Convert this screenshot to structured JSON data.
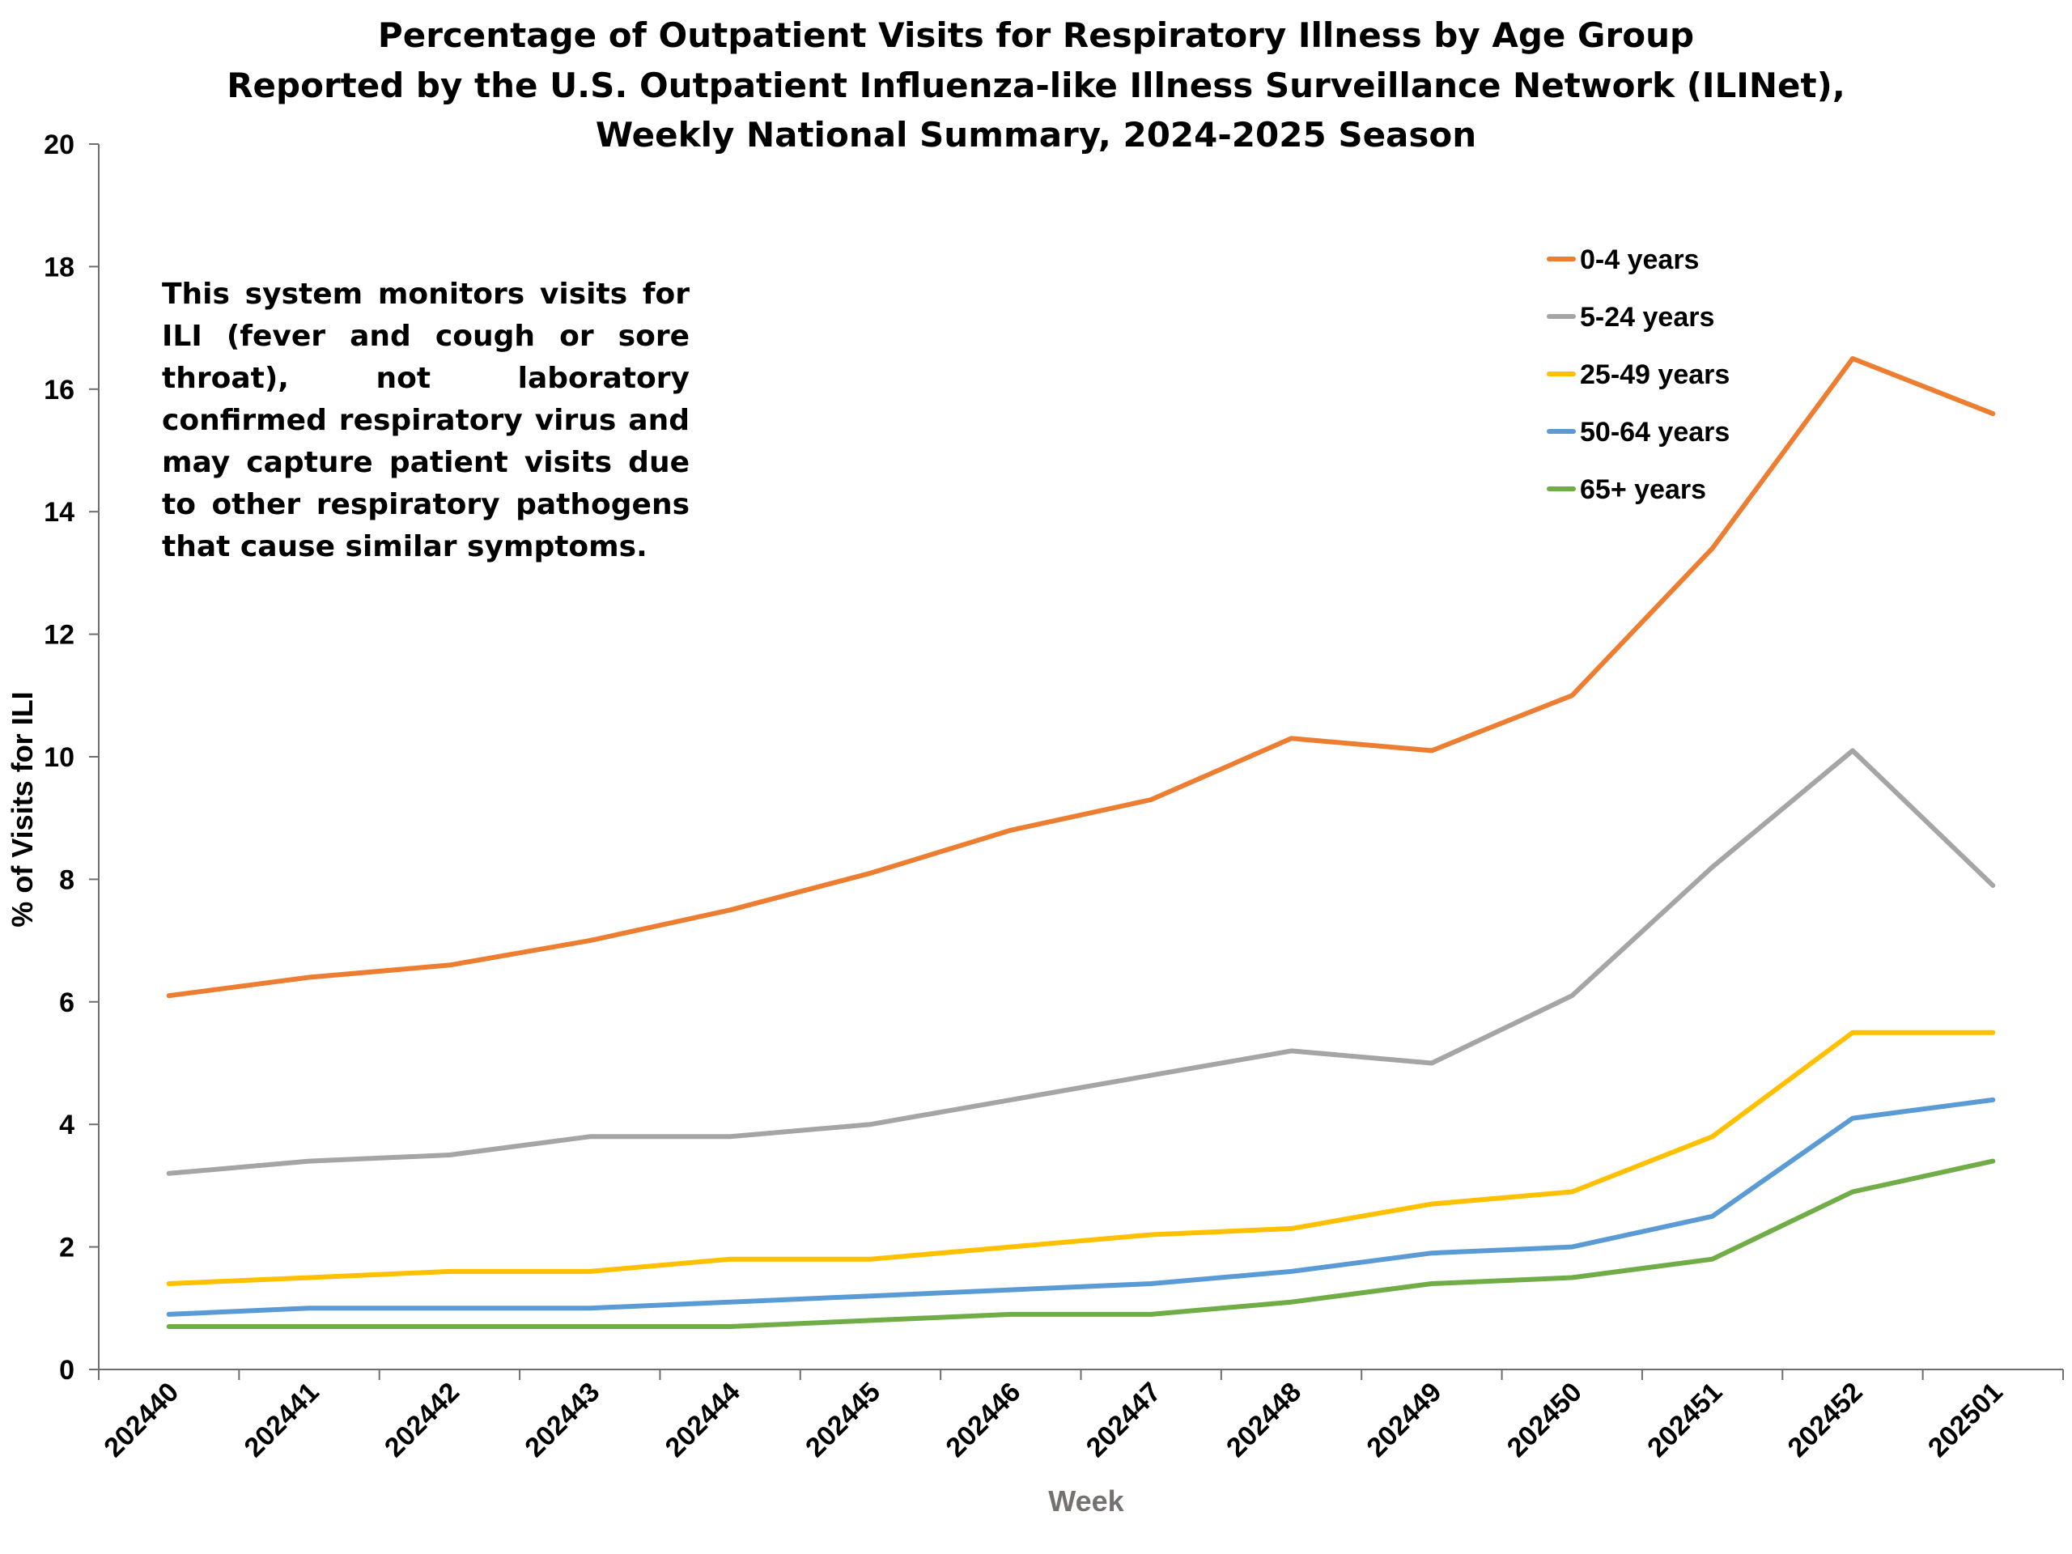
{
  "chart_data": {
    "type": "line",
    "title": [
      "Percentage of Outpatient Visits for Respiratory Illness by Age Group",
      "Reported by the U.S. Outpatient Influenza-like Illness Surveillance Network (ILINet),",
      "Weekly National Summary, 2024-2025 Season"
    ],
    "xlabel": "Week",
    "ylabel": "% of Visits for ILI",
    "ylim": [
      0,
      20
    ],
    "yticks": [
      "0",
      "2",
      "4",
      "6",
      "8",
      "10",
      "12",
      "14",
      "16",
      "18",
      "20"
    ],
    "categories": [
      "202440",
      "202441",
      "202442",
      "202443",
      "202444",
      "202445",
      "202446",
      "202447",
      "202448",
      "202449",
      "202450",
      "202451",
      "202452",
      "202501"
    ],
    "series": [
      {
        "name": "0-4 years",
        "color": "#ED7D31",
        "values": [
          6.1,
          6.4,
          6.6,
          7.0,
          7.5,
          8.1,
          8.8,
          9.3,
          10.3,
          10.1,
          11.0,
          13.4,
          16.5,
          15.6
        ]
      },
      {
        "name": "5-24 years",
        "color": "#A5A5A5",
        "values": [
          3.2,
          3.4,
          3.5,
          3.8,
          3.8,
          4.0,
          4.4,
          4.8,
          5.2,
          5.0,
          6.1,
          8.2,
          10.1,
          7.9
        ]
      },
      {
        "name": "25-49 years",
        "color": "#FFC000",
        "values": [
          1.4,
          1.5,
          1.6,
          1.6,
          1.8,
          1.8,
          2.0,
          2.2,
          2.3,
          2.7,
          2.9,
          3.8,
          5.5,
          5.5
        ]
      },
      {
        "name": "50-64 years",
        "color": "#5B9BD5",
        "values": [
          0.9,
          1.0,
          1.0,
          1.0,
          1.1,
          1.2,
          1.3,
          1.4,
          1.6,
          1.9,
          2.0,
          2.5,
          4.1,
          4.4
        ]
      },
      {
        "name": "65+ years",
        "color": "#70AD47",
        "values": [
          0.7,
          0.7,
          0.7,
          0.7,
          0.7,
          0.8,
          0.9,
          0.9,
          1.1,
          1.4,
          1.5,
          1.8,
          2.9,
          3.4
        ]
      }
    ],
    "legend_position": "top-right",
    "grid": false,
    "annotation": "This system monitors visits for ILI (fever and cough or sore throat), not laboratory confirmed respiratory virus and may capture patient visits due to other respiratory pathogens that cause similar symptoms."
  }
}
